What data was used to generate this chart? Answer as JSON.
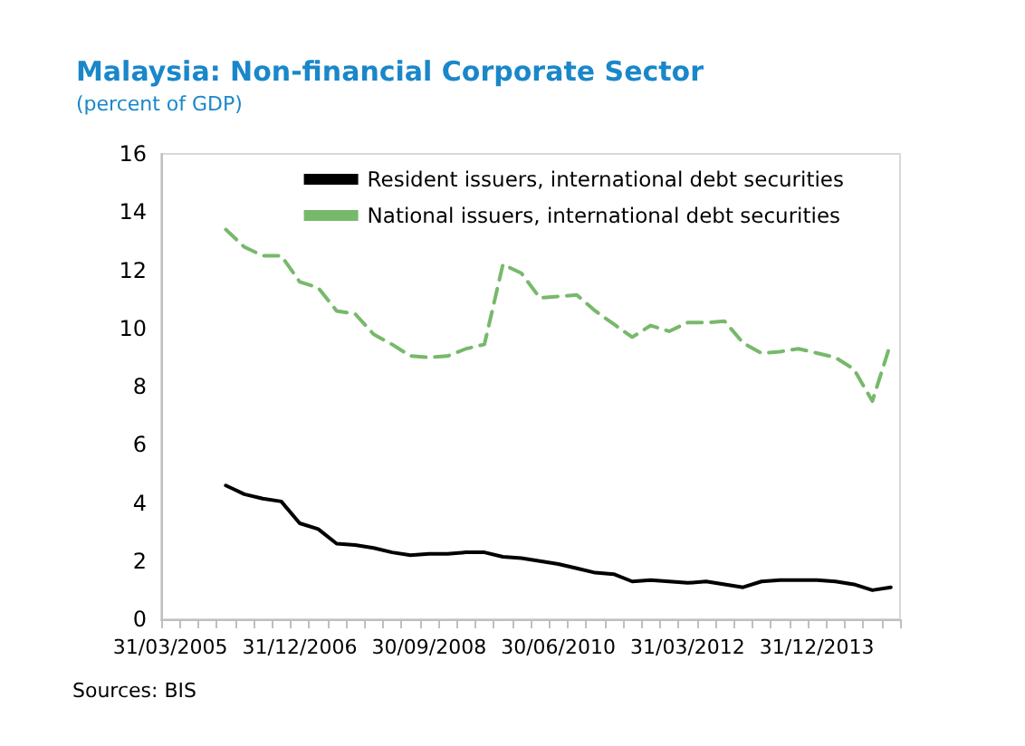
{
  "chart_data": {
    "type": "line",
    "title": "Malaysia: Non-financial Corporate Sector",
    "subtitle": "(percent of GDP)",
    "categories": [
      "31/03/2005",
      null,
      null,
      null,
      null,
      null,
      null,
      "31/12/2006",
      null,
      null,
      null,
      null,
      null,
      null,
      "30/09/2008",
      null,
      null,
      null,
      null,
      null,
      null,
      "30/06/2010",
      null,
      null,
      null,
      null,
      null,
      null,
      "31/03/2012",
      null,
      null,
      null,
      null,
      null,
      null,
      "31/12/2013",
      null,
      null,
      null,
      null
    ],
    "series": [
      {
        "name": "Resident issuers, international debt securities",
        "color": "#000000",
        "line_style": "solid",
        "values": [
          null,
          null,
          null,
          4.6,
          4.3,
          4.15,
          4.05,
          3.3,
          3.1,
          2.6,
          2.55,
          2.45,
          2.3,
          2.2,
          2.25,
          2.25,
          2.3,
          2.3,
          2.15,
          2.1,
          2.0,
          1.9,
          1.75,
          1.6,
          1.55,
          1.3,
          1.35,
          1.3,
          1.25,
          1.3,
          1.2,
          1.1,
          1.3,
          1.35,
          1.35,
          1.35,
          1.3,
          1.2,
          1.0,
          1.1
        ]
      },
      {
        "name": "National issuers, international debt securities",
        "color": "#77b96b",
        "line_style": "dashed",
        "values": [
          null,
          null,
          null,
          13.4,
          12.8,
          12.5,
          12.5,
          11.6,
          11.4,
          10.6,
          10.5,
          9.8,
          9.45,
          9.05,
          9.0,
          9.05,
          9.3,
          9.45,
          12.2,
          11.9,
          11.05,
          11.1,
          11.15,
          10.6,
          10.15,
          9.7,
          10.1,
          9.9,
          10.2,
          10.2,
          10.25,
          9.5,
          9.15,
          9.2,
          9.3,
          9.15,
          9.0,
          8.6,
          7.5,
          9.5
        ]
      }
    ],
    "ylim": [
      0,
      16
    ],
    "yticks": [
      0,
      2,
      4,
      6,
      8,
      10,
      12,
      14,
      16
    ],
    "grid": false,
    "legend": "top right",
    "marker": "none",
    "annotations": [
      "Sources: BIS"
    ]
  }
}
